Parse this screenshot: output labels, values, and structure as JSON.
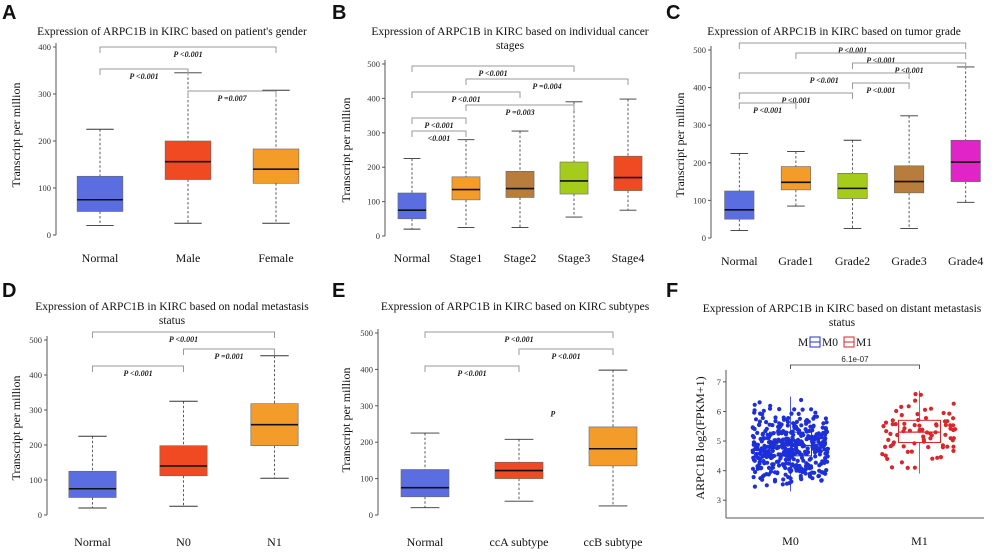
{
  "panels": [
    {
      "label": "A",
      "title_lines": [
        "Expression of ARPC1B in KIRC based on patient's gender"
      ],
      "chart_data": {
        "type": "box",
        "ylabel": "Transcript per million",
        "ylim": [
          0,
          400
        ],
        "yticks": [
          0,
          100,
          200,
          300,
          400
        ],
        "categories": [
          "Normal",
          "Male",
          "Female"
        ],
        "colors": [
          "#5b6ee1",
          "#f04a23",
          "#f39c2a"
        ],
        "boxes": [
          {
            "min": 20,
            "q1": 50,
            "median": 75,
            "q3": 125,
            "max": 225
          },
          {
            "min": 25,
            "q1": 118,
            "median": 156,
            "q3": 200,
            "max": 345
          },
          {
            "min": 25,
            "q1": 110,
            "median": 140,
            "q3": 183,
            "max": 308
          }
        ],
        "comparisons": [
          {
            "from": 0,
            "to": 2,
            "text": "P <0.001"
          },
          {
            "from": 0,
            "to": 1,
            "text": "P <0.001"
          },
          {
            "from": 1,
            "to": 2,
            "text": "P =0.007"
          }
        ]
      }
    },
    {
      "label": "B",
      "title_lines": [
        "Expression of ARPC1B in KIRC based on individual cancer",
        "stages"
      ],
      "chart_data": {
        "type": "box",
        "ylabel": "Transcript per million",
        "ylim": [
          0,
          500
        ],
        "yticks": [
          0,
          100,
          200,
          300,
          400,
          500
        ],
        "categories": [
          "Normal",
          "Stage1",
          "Stage2",
          "Stage3",
          "Stage4"
        ],
        "colors": [
          "#5b6ee1",
          "#f39c2a",
          "#b87c3d",
          "#a5cc1b",
          "#f04a23"
        ],
        "boxes": [
          {
            "min": 20,
            "q1": 50,
            "median": 75,
            "q3": 125,
            "max": 225
          },
          {
            "min": 25,
            "q1": 105,
            "median": 135,
            "q3": 172,
            "max": 280
          },
          {
            "min": 25,
            "q1": 112,
            "median": 138,
            "q3": 188,
            "max": 305
          },
          {
            "min": 55,
            "q1": 122,
            "median": 160,
            "q3": 215,
            "max": 390
          },
          {
            "min": 75,
            "q1": 132,
            "median": 170,
            "q3": 232,
            "max": 398
          }
        ],
        "comparisons": [
          {
            "from": 0,
            "to": 3,
            "text": "P <0.001"
          },
          {
            "from": 1,
            "to": 4,
            "text": "P =0.004"
          },
          {
            "from": 0,
            "to": 2,
            "text": "P <0.001"
          },
          {
            "from": 1,
            "to": 3,
            "text": "P =0.003"
          },
          {
            "from": 0,
            "to": 1,
            "text": "P <0.001"
          },
          {
            "from": 0,
            "to": 1,
            "text": "<0.001"
          }
        ]
      }
    },
    {
      "label": "C",
      "title_lines": [
        "Expression of ARPC1B in KIRC based on tumor grade"
      ],
      "chart_data": {
        "type": "box",
        "ylabel": "Transcript per million",
        "ylim": [
          0,
          500
        ],
        "yticks": [
          0,
          100,
          200,
          300,
          400,
          500
        ],
        "categories": [
          "Normal",
          "Grade1",
          "Grade2",
          "Grade3",
          "Grade4"
        ],
        "colors": [
          "#5b6ee1",
          "#f39c2a",
          "#a5cc1b",
          "#b87c3d",
          "#e024c7"
        ],
        "boxes": [
          {
            "min": 20,
            "q1": 50,
            "median": 75,
            "q3": 125,
            "max": 225
          },
          {
            "min": 85,
            "q1": 128,
            "median": 148,
            "q3": 190,
            "max": 230
          },
          {
            "min": 25,
            "q1": 105,
            "median": 132,
            "q3": 172,
            "max": 260
          },
          {
            "min": 25,
            "q1": 120,
            "median": 150,
            "q3": 192,
            "max": 325
          },
          {
            "min": 95,
            "q1": 150,
            "median": 202,
            "q3": 260,
            "max": 455
          }
        ],
        "comparisons": [
          {
            "from": 0,
            "to": 4,
            "text": "P <0.001"
          },
          {
            "from": 1,
            "to": 4,
            "text": "P <0.001"
          },
          {
            "from": 2,
            "to": 4,
            "text": "P <0.001"
          },
          {
            "from": 0,
            "to": 3,
            "text": "P <0.001"
          },
          {
            "from": 2,
            "to": 3,
            "text": "P <0.001"
          },
          {
            "from": 0,
            "to": 2,
            "text": "P <0.001"
          },
          {
            "from": 0,
            "to": 1,
            "text": "P <0.001"
          }
        ]
      }
    },
    {
      "label": "D",
      "title_lines": [
        "Expression of ARPC1B in KIRC based on nodal metastasis",
        "status"
      ],
      "chart_data": {
        "type": "box",
        "ylabel": "Transcript per million",
        "ylim": [
          0,
          500
        ],
        "yticks": [
          0,
          100,
          200,
          300,
          400,
          500
        ],
        "categories": [
          "Normal",
          "N0",
          "N1"
        ],
        "colors": [
          "#5b6ee1",
          "#f04a23",
          "#f39c2a"
        ],
        "boxes": [
          {
            "min": 20,
            "q1": 50,
            "median": 75,
            "q3": 125,
            "max": 225
          },
          {
            "min": 25,
            "q1": 112,
            "median": 140,
            "q3": 198,
            "max": 325
          },
          {
            "min": 105,
            "q1": 198,
            "median": 258,
            "q3": 318,
            "max": 455
          }
        ],
        "comparisons": [
          {
            "from": 0,
            "to": 2,
            "text": "P <0.001"
          },
          {
            "from": 1,
            "to": 2,
            "text": "P =0.001"
          },
          {
            "from": 0,
            "to": 1,
            "text": "P <0.001"
          }
        ]
      }
    },
    {
      "label": "E",
      "title_lines": [
        "Expression of ARPC1B in KIRC based on KIRC subtypes"
      ],
      "chart_data": {
        "type": "box",
        "ylabel": "Transcript per million",
        "ylim": [
          0,
          500
        ],
        "yticks": [
          0,
          100,
          200,
          300,
          400,
          500
        ],
        "categories": [
          "Normal",
          "ccA subtype",
          "ccB subtype"
        ],
        "colors": [
          "#5b6ee1",
          "#f04a23",
          "#f39c2a"
        ],
        "boxes": [
          {
            "min": 20,
            "q1": 50,
            "median": 75,
            "q3": 125,
            "max": 225
          },
          {
            "min": 38,
            "q1": 100,
            "median": 122,
            "q3": 145,
            "max": 208
          },
          {
            "min": 25,
            "q1": 135,
            "median": 182,
            "q3": 242,
            "max": 398
          }
        ],
        "comparisons": [
          {
            "from": 0,
            "to": 2,
            "text": "P <0.001"
          },
          {
            "from": 1,
            "to": 2,
            "text": "P <0.001"
          },
          {
            "from": 0,
            "to": 1,
            "text": "P <0.001"
          }
        ],
        "annotation": "P"
      }
    },
    {
      "label": "F",
      "title_lines": [
        "Expression of ARPC1B in KIRC based on distant metastasis",
        "status"
      ],
      "chart_data": {
        "type": "box-jitter",
        "ylabel": "ARPC1B  log2(FPKM+1)",
        "ylim": [
          2.4,
          7.4
        ],
        "yticks": [
          3,
          4,
          5,
          6,
          7
        ],
        "legend_title": "M",
        "legend": [
          "M0",
          "M1"
        ],
        "categories": [
          "M0",
          "M1"
        ],
        "colors": [
          "#1d2fd8",
          "#d9262b"
        ],
        "boxes": [
          {
            "min": 3.3,
            "q1": 4.5,
            "median": 4.85,
            "q3": 5.3,
            "max": 6.5,
            "n": 420,
            "lo": 2.5,
            "hi": 6.6
          },
          {
            "min": 3.9,
            "q1": 4.95,
            "median": 5.3,
            "q3": 5.7,
            "max": 6.7,
            "n": 80,
            "lo": 3.8,
            "hi": 7.3
          }
        ],
        "comparison": {
          "from": 0,
          "to": 1,
          "text": "6.1e-07"
        }
      }
    }
  ]
}
